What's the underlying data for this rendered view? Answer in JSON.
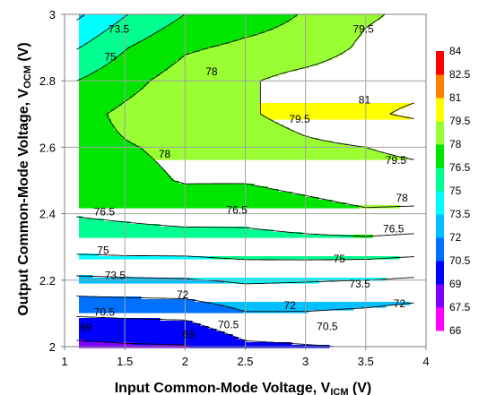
{
  "chart_data": {
    "type": "heatmap",
    "subtype": "contour",
    "xlabel_main": "Input Common-Mode Voltage, V",
    "xlabel_sub": "ICM",
    "xlabel_unit": " (V)",
    "ylabel_main": "Output Common-Mode Voltage, V",
    "ylabel_sub": "OCM",
    "ylabel_unit": " (V)",
    "xlim": [
      1,
      4
    ],
    "ylim": [
      2,
      3
    ],
    "x_ticks": [
      "1",
      "1.5",
      "2",
      "2.5",
      "3",
      "3.5",
      "4"
    ],
    "y_ticks": [
      "2",
      "2.2",
      "2.4",
      "2.6",
      "2.8",
      "3"
    ],
    "grid": true,
    "x": [
      1.1,
      1.5,
      2.0,
      2.5,
      3.0,
      3.5,
      3.9
    ],
    "y": [
      2.0,
      2.1,
      2.2,
      2.3,
      2.4,
      2.5,
      2.6,
      2.7,
      2.8,
      2.9,
      3.0
    ],
    "z": [
      [
        68.6,
        68.8,
        68.9,
        70.2,
        70.4,
        70.6,
        70.7
      ],
      [
        70.7,
        70.8,
        70.9,
        71.9,
        71.9,
        71.7,
        71.4
      ],
      [
        73.2,
        73.3,
        73.4,
        73.7,
        73.6,
        73.5,
        73.3
      ],
      [
        75.5,
        75.6,
        75.6,
        75.8,
        75.9,
        75.9,
        75.7
      ],
      [
        76.6,
        76.8,
        77.1,
        77.0,
        77.4,
        77.8,
        77.7
      ],
      [
        77.2,
        77.6,
        78.1,
        78.1,
        78.5,
        78.9,
        79.0
      ],
      [
        77.5,
        77.9,
        78.3,
        78.6,
        79.2,
        79.5,
        79.8
      ],
      [
        77.5,
        78.3,
        79.1,
        79.3,
        80.1,
        80.8,
        81.2
      ],
      [
        76.5,
        77.5,
        78.7,
        79.3,
        80.1,
        80.5,
        80.6
      ],
      [
        74.9,
        76.4,
        77.8,
        78.3,
        78.6,
        79.8,
        80.2
      ],
      [
        73.2,
        74.9,
        76.5,
        77.3,
        78.1,
        79.3,
        79.8
      ]
    ],
    "levels": [
      66,
      67.5,
      69,
      70.5,
      72,
      73.5,
      75,
      76.5,
      78,
      79.5,
      81,
      82.5,
      84
    ],
    "band_colors": [
      "#ff00ff",
      "#7f00ff",
      "#0000ff",
      "#0070ff",
      "#00c0ff",
      "#00ffff",
      "#00ff90",
      "#00e600",
      "#99ff33",
      "#ffff00",
      "#ff8000",
      "#ff0000"
    ],
    "colorbar_labels": [
      "84",
      "82.5",
      "81",
      "79.5",
      "78",
      "76.5",
      "75",
      "73.5",
      "72",
      "70.5",
      "69",
      "67.5",
      "66"
    ],
    "contour_labels": [
      {
        "text": "73.5",
        "x": 1.45,
        "y": 2.956
      },
      {
        "text": "75",
        "x": 1.38,
        "y": 2.872
      },
      {
        "text": "78",
        "x": 2.22,
        "y": 2.828
      },
      {
        "text": "79.5",
        "x": 3.48,
        "y": 2.956
      },
      {
        "text": "81",
        "x": 3.49,
        "y": 2.742
      },
      {
        "text": "79.5",
        "x": 2.95,
        "y": 2.684
      },
      {
        "text": "78",
        "x": 1.83,
        "y": 2.58
      },
      {
        "text": "79.5",
        "x": 3.75,
        "y": 2.561
      },
      {
        "text": "78",
        "x": 3.8,
        "y": 2.447
      },
      {
        "text": "76.5",
        "x": 1.33,
        "y": 2.405
      },
      {
        "text": "76.5",
        "x": 2.43,
        "y": 2.411
      },
      {
        "text": "76.5",
        "x": 3.73,
        "y": 2.355
      },
      {
        "text": "75",
        "x": 1.32,
        "y": 2.29
      },
      {
        "text": "75",
        "x": 3.28,
        "y": 2.264
      },
      {
        "text": "73.5",
        "x": 1.42,
        "y": 2.214
      },
      {
        "text": "73.5",
        "x": 3.45,
        "y": 2.189
      },
      {
        "text": "72",
        "x": 1.98,
        "y": 2.157
      },
      {
        "text": "72",
        "x": 2.87,
        "y": 2.124
      },
      {
        "text": "72",
        "x": 3.78,
        "y": 2.129
      },
      {
        "text": "70.5",
        "x": 1.33,
        "y": 2.104
      },
      {
        "text": "70.5",
        "x": 2.36,
        "y": 2.066
      },
      {
        "text": "70.5",
        "x": 3.18,
        "y": 2.061
      },
      {
        "text": "69",
        "x": 1.18,
        "y": 2.058
      },
      {
        "text": "69",
        "x": 2.03,
        "y": 2.037
      }
    ]
  }
}
